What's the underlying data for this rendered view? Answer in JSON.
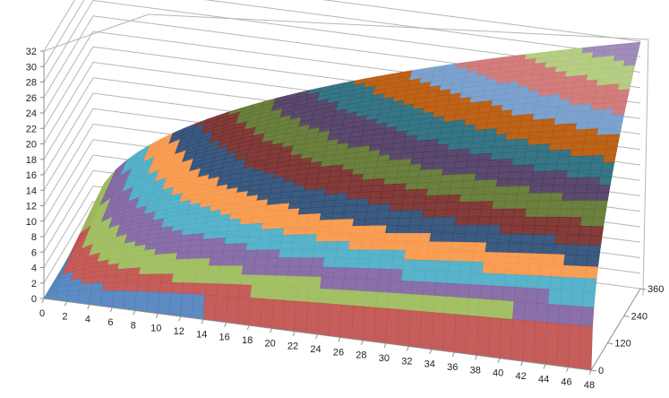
{
  "chart_data": {
    "type": "surface",
    "title": "",
    "x": [
      0,
      2,
      4,
      6,
      8,
      10,
      12,
      14,
      16,
      18,
      20,
      22,
      24,
      26,
      28,
      30,
      32,
      34,
      36,
      38,
      40,
      42,
      44,
      46,
      48
    ],
    "x_tick_labels": [
      "0",
      "2",
      "4",
      "6",
      "8",
      "10",
      "12",
      "14",
      "16",
      "18",
      "20",
      "22",
      "24",
      "26",
      "28",
      "30",
      "32",
      "34",
      "36",
      "38",
      "40",
      "42",
      "44",
      "46",
      "48"
    ],
    "y_tick_labels": [
      "0",
      "120",
      "240",
      "360"
    ],
    "ylim": [
      0,
      360
    ],
    "z_tick_labels": [
      "0",
      "2",
      "4",
      "6",
      "8",
      "10",
      "12",
      "14",
      "16",
      "18",
      "20",
      "22",
      "24",
      "26",
      "28",
      "30",
      "32"
    ],
    "zlim": [
      0,
      32
    ],
    "z_band_step": 2,
    "surface": "z = sqrt(x * y / 17)",
    "band_colors": [
      "#4f81bd",
      "#c0504d",
      "#9bbb59",
      "#8064a2",
      "#4bacc6",
      "#f79646",
      "#2c4d75",
      "#772c2a",
      "#5f7530",
      "#4d3b62",
      "#276a7c",
      "#b65708",
      "#729aca",
      "#cd7371",
      "#afc97a",
      "#9983b5"
    ],
    "grid": true,
    "legend": "none"
  }
}
